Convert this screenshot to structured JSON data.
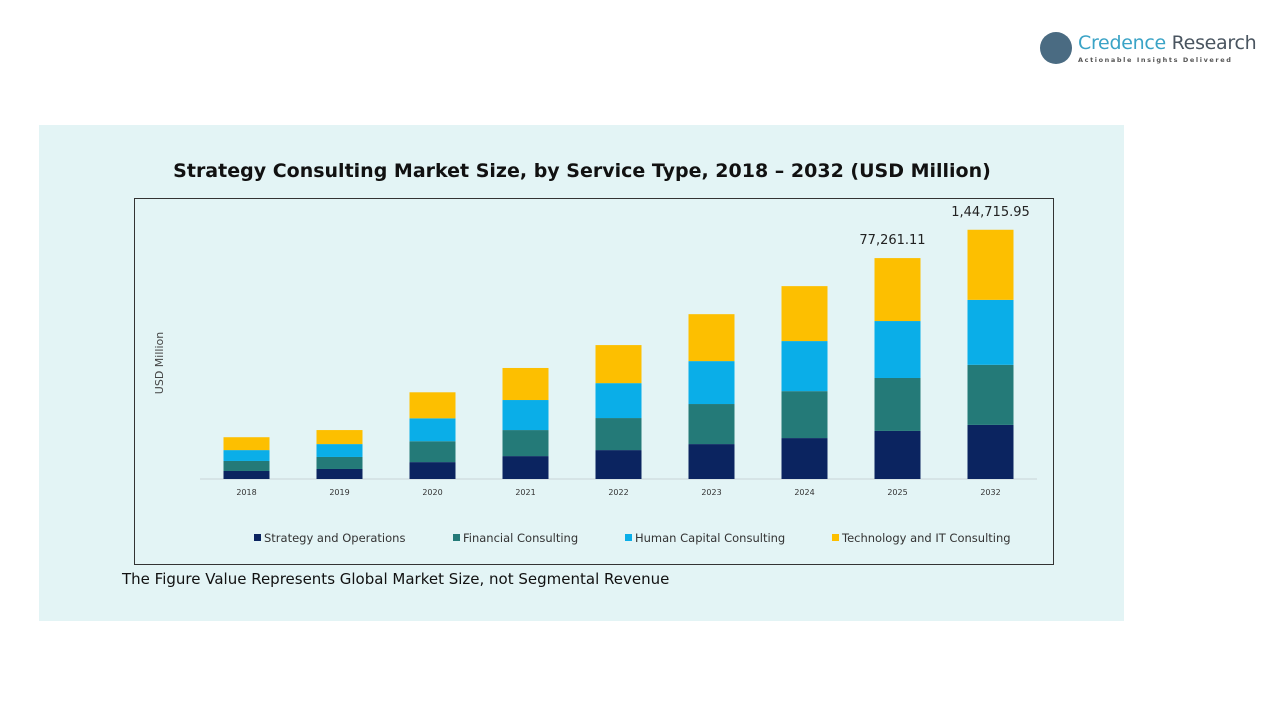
{
  "logo": {
    "name_part1": "Credence",
    "name_part2": " Research",
    "tagline": "Actionable Insights Delivered"
  },
  "footnote": "The Figure Value Represents Global Market Size, not Segmental Revenue",
  "chart_data": {
    "type": "bar",
    "stacked": true,
    "title": "Strategy Consulting Market Size, by Service Type, 2018 – 2032 (USD Million)",
    "xlabel": "",
    "ylabel": "USD Million",
    "ylim": [
      0,
      97500
    ],
    "grid": false,
    "legend": "bottom",
    "categories": [
      "2018",
      "2019",
      "2020",
      "2021",
      "2022",
      "2023",
      "2024",
      "2025",
      "2032"
    ],
    "series": [
      {
        "name": "Strategy and Operations",
        "color": "#0b2460",
        "values": [
          2800,
          3500,
          5900,
          8000,
          10100,
          12200,
          14300,
          16800,
          18900
        ]
      },
      {
        "name": "Financial Consulting",
        "color": "#247a78",
        "values": [
          3500,
          4200,
          7300,
          9100,
          11200,
          14000,
          16400,
          18500,
          21000
        ]
      },
      {
        "name": "Human Capital Consulting",
        "color": "#0aaee8",
        "values": [
          3800,
          4500,
          8000,
          10500,
          12200,
          15000,
          17500,
          19900,
          22700
        ]
      },
      {
        "name": "Technology and IT Consulting",
        "color": "#fdbf00",
        "values": [
          4500,
          4900,
          9100,
          11200,
          13300,
          16400,
          19200,
          22000,
          24500
        ]
      }
    ],
    "annotations": [
      {
        "category": "2025",
        "text": "77,261.11"
      },
      {
        "category": "2032",
        "text": "1,44,715.95"
      }
    ]
  }
}
